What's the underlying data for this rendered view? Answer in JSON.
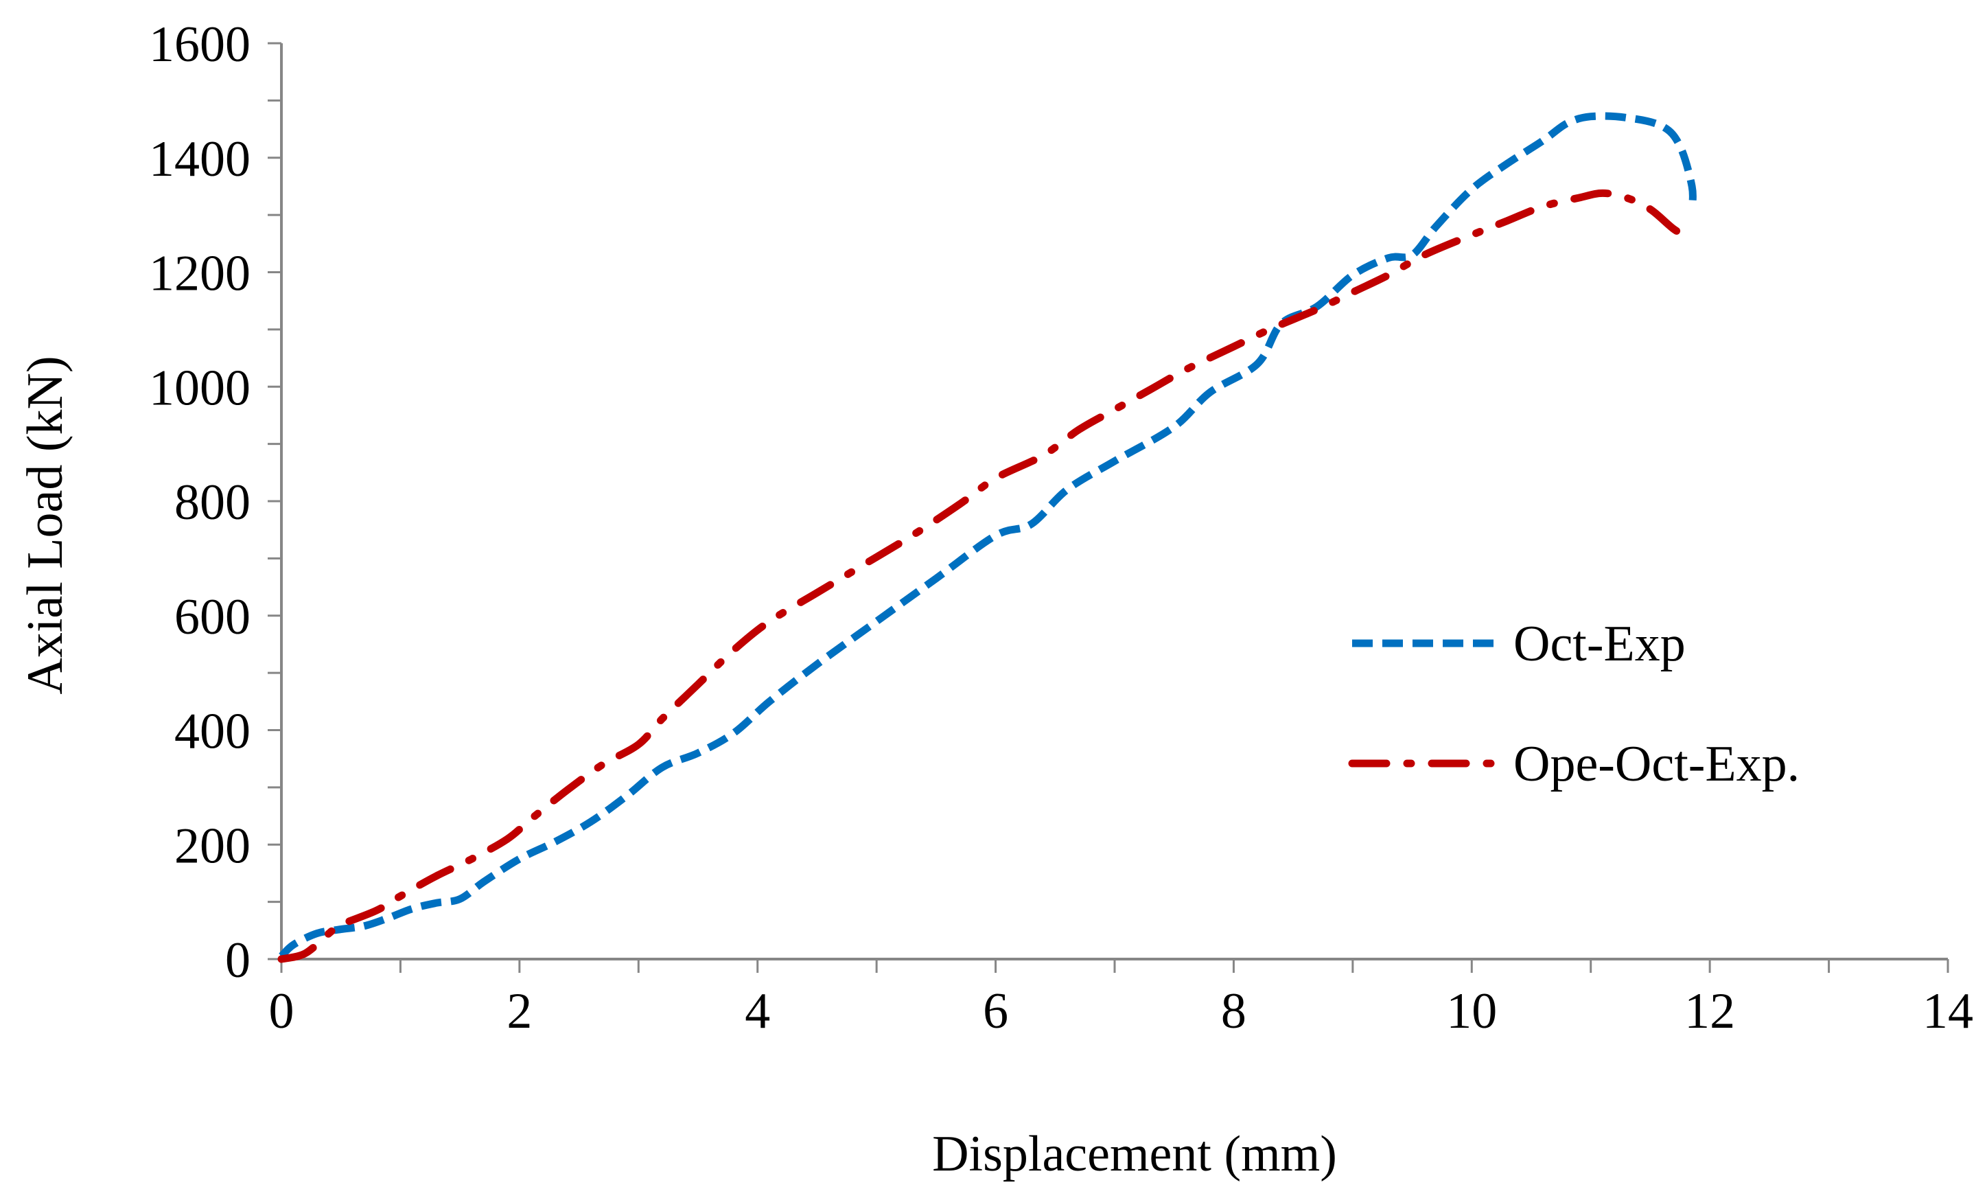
{
  "chart_data": {
    "type": "line",
    "title": "",
    "xlabel": "Displacement (mm)",
    "ylabel": "Axial Load (kN)",
    "xlim": [
      0,
      14
    ],
    "ylim": [
      0,
      1600
    ],
    "xticks": [
      0,
      2,
      4,
      6,
      8,
      10,
      12,
      14
    ],
    "yticks": [
      0,
      200,
      400,
      600,
      800,
      1000,
      1200,
      1400,
      1600
    ],
    "x_minor_step": 1,
    "y_minor_step": 100,
    "grid": false,
    "legend_position": "right",
    "series": [
      {
        "name": "Oct-Exp",
        "color": "#0070C0",
        "style": "dashed",
        "points": [
          [
            0,
            5
          ],
          [
            0.1,
            25
          ],
          [
            0.3,
            45
          ],
          [
            0.5,
            52
          ],
          [
            0.7,
            58
          ],
          [
            0.9,
            72
          ],
          [
            1.1,
            88
          ],
          [
            1.3,
            98
          ],
          [
            1.5,
            105
          ],
          [
            1.7,
            135
          ],
          [
            2.0,
            175
          ],
          [
            2.3,
            205
          ],
          [
            2.6,
            240
          ],
          [
            2.9,
            285
          ],
          [
            3.2,
            335
          ],
          [
            3.5,
            360
          ],
          [
            3.8,
            395
          ],
          [
            4.1,
            450
          ],
          [
            4.5,
            515
          ],
          [
            5.0,
            590
          ],
          [
            5.5,
            665
          ],
          [
            6.0,
            740
          ],
          [
            6.3,
            760
          ],
          [
            6.6,
            820
          ],
          [
            7.0,
            870
          ],
          [
            7.5,
            930
          ],
          [
            7.8,
            990
          ],
          [
            8.2,
            1040
          ],
          [
            8.4,
            1110
          ],
          [
            8.7,
            1140
          ],
          [
            9.0,
            1195
          ],
          [
            9.3,
            1225
          ],
          [
            9.5,
            1230
          ],
          [
            9.7,
            1280
          ],
          [
            10.0,
            1345
          ],
          [
            10.3,
            1390
          ],
          [
            10.6,
            1430
          ],
          [
            10.8,
            1460
          ],
          [
            11.0,
            1472
          ],
          [
            11.3,
            1470
          ],
          [
            11.6,
            1455
          ],
          [
            11.75,
            1420
          ],
          [
            11.85,
            1350
          ],
          [
            11.85,
            1310
          ]
        ]
      },
      {
        "name": "Ope-Oct-Exp.",
        "color": "#C00000",
        "style": "dash-dot",
        "points": [
          [
            0,
            0
          ],
          [
            0.2,
            10
          ],
          [
            0.4,
            45
          ],
          [
            0.5,
            60
          ],
          [
            0.8,
            85
          ],
          [
            1.0,
            110
          ],
          [
            1.3,
            145
          ],
          [
            1.6,
            175
          ],
          [
            1.9,
            210
          ],
          [
            2.1,
            245
          ],
          [
            2.4,
            295
          ],
          [
            2.7,
            340
          ],
          [
            3.0,
            375
          ],
          [
            3.2,
            420
          ],
          [
            3.5,
            480
          ],
          [
            3.8,
            540
          ],
          [
            4.1,
            590
          ],
          [
            4.5,
            640
          ],
          [
            4.9,
            690
          ],
          [
            5.3,
            740
          ],
          [
            5.7,
            795
          ],
          [
            6.0,
            840
          ],
          [
            6.4,
            880
          ],
          [
            6.7,
            925
          ],
          [
            7.0,
            960
          ],
          [
            7.3,
            995
          ],
          [
            7.6,
            1030
          ],
          [
            8.0,
            1070
          ],
          [
            8.3,
            1100
          ],
          [
            8.7,
            1135
          ],
          [
            9.0,
            1165
          ],
          [
            9.3,
            1195
          ],
          [
            9.6,
            1230
          ],
          [
            10.0,
            1265
          ],
          [
            10.3,
            1290
          ],
          [
            10.6,
            1315
          ],
          [
            10.9,
            1330
          ],
          [
            11.1,
            1338
          ],
          [
            11.3,
            1330
          ],
          [
            11.5,
            1310
          ],
          [
            11.7,
            1275
          ],
          [
            11.85,
            1258
          ]
        ]
      }
    ]
  }
}
